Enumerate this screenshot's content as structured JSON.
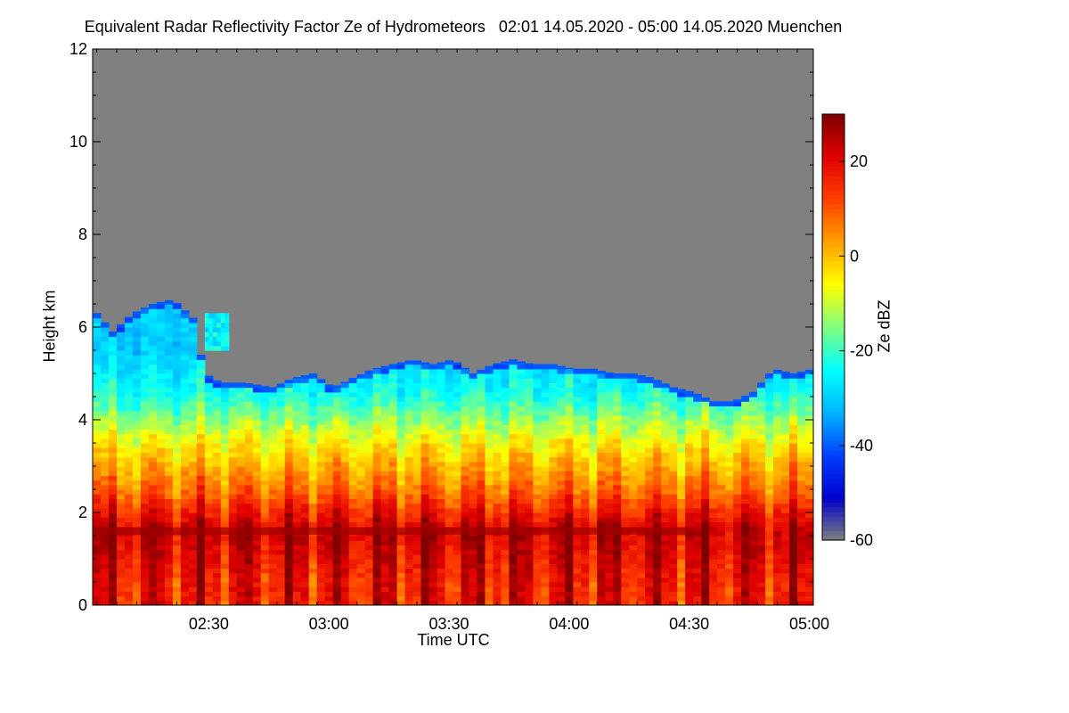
{
  "chart_data": {
    "type": "heatmap",
    "title": "Equivalent Radar Reflectivity Factor Ze of Hydrometeors   02:01 14.05.2020 - 05:00 14.05.2020 Muenchen",
    "xlabel": "Time UTC",
    "ylabel": "Height km",
    "colorbar_label": "Ze dBZ",
    "x_range": [
      "02:01",
      "05:00"
    ],
    "x_ticks": [
      "02:30",
      "03:00",
      "03:30",
      "04:00",
      "04:30",
      "05:00"
    ],
    "x_tick_minutes": [
      29,
      59,
      89,
      119,
      149,
      179
    ],
    "x_range_minutes": [
      0,
      180
    ],
    "y_range": [
      0,
      12
    ],
    "y_ticks": [
      "0",
      "2",
      "4",
      "6",
      "8",
      "10",
      "12"
    ],
    "colorbar_range": [
      -60,
      30
    ],
    "colorbar_ticks": [
      "-60",
      "-40",
      "-20",
      "0",
      "20"
    ],
    "colorbar_tick_values": [
      -60,
      -40,
      -20,
      0,
      20
    ],
    "background_color": "#808080",
    "colormap": [
      "#808080",
      "#0000cc",
      "#0040ff",
      "#00b4ff",
      "#00ffff",
      "#80ff80",
      "#ffff00",
      "#ffa000",
      "#ff4000",
      "#e00000",
      "#800000"
    ],
    "echo_top_km": [
      [
        0,
        6.4
      ],
      [
        5,
        5.9
      ],
      [
        10,
        6.3
      ],
      [
        15,
        6.5
      ],
      [
        20,
        6.6
      ],
      [
        25,
        6.2
      ],
      [
        28,
        5.0
      ],
      [
        32,
        4.8
      ],
      [
        38,
        4.8
      ],
      [
        45,
        4.7
      ],
      [
        50,
        4.9
      ],
      [
        55,
        5.0
      ],
      [
        60,
        4.7
      ],
      [
        65,
        4.9
      ],
      [
        70,
        5.1
      ],
      [
        75,
        5.2
      ],
      [
        80,
        5.3
      ],
      [
        85,
        5.2
      ],
      [
        90,
        5.3
      ],
      [
        95,
        5.0
      ],
      [
        100,
        5.2
      ],
      [
        105,
        5.3
      ],
      [
        110,
        5.2
      ],
      [
        115,
        5.2
      ],
      [
        120,
        5.1
      ],
      [
        125,
        5.1
      ],
      [
        130,
        5.0
      ],
      [
        135,
        5.0
      ],
      [
        140,
        4.9
      ],
      [
        145,
        4.7
      ],
      [
        150,
        4.6
      ],
      [
        155,
        4.4
      ],
      [
        160,
        4.4
      ],
      [
        165,
        4.6
      ],
      [
        170,
        5.1
      ],
      [
        175,
        5.0
      ],
      [
        180,
        5.1
      ]
    ],
    "isolated_echo": {
      "x_minutes": [
        28,
        34
      ],
      "height_km": [
        5.5,
        6.2
      ]
    },
    "melting_layer_km": 1.6,
    "typical_ze_dbz": [
      {
        "height_km": 0.5,
        "ze": 18
      },
      {
        "height_km": 1.6,
        "ze": 24
      },
      {
        "height_km": 2.5,
        "ze": 8
      },
      {
        "height_km": 3.5,
        "ze": -5
      },
      {
        "height_km": 4.5,
        "ze": -22
      },
      {
        "height_km": 5.5,
        "ze": -30
      }
    ]
  }
}
